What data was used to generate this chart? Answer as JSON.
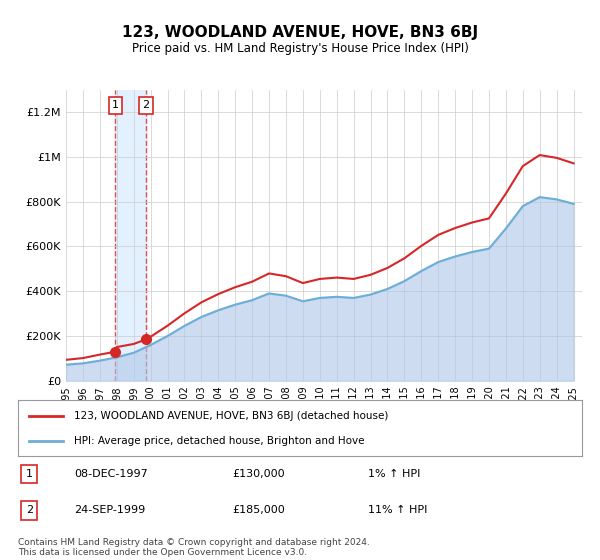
{
  "title": "123, WOODLAND AVENUE, HOVE, BN3 6BJ",
  "subtitle": "Price paid vs. HM Land Registry's House Price Index (HPI)",
  "yticks": [
    0,
    200000,
    400000,
    600000,
    800000,
    1000000,
    1200000
  ],
  "ytick_labels": [
    "£0",
    "£200K",
    "£400K",
    "£600K",
    "£800K",
    "£1M",
    "£1.2M"
  ],
  "ylim": [
    0,
    1300000
  ],
  "xlim_start": 1995.5,
  "xlim_end": 2025.5,
  "hpi_color": "#aec6e8",
  "hpi_line_color": "#6baed6",
  "price_color": "#d62728",
  "shade_color": "#ddeeff",
  "dashed_color": "#e05050",
  "purchase1_x": 1997.92,
  "purchase1_y": 130000,
  "purchase2_x": 1999.73,
  "purchase2_y": 185000,
  "legend_line1": "123, WOODLAND AVENUE, HOVE, BN3 6BJ (detached house)",
  "legend_line2": "HPI: Average price, detached house, Brighton and Hove",
  "table_row1_num": "1",
  "table_row1_date": "08-DEC-1997",
  "table_row1_price": "£130,000",
  "table_row1_hpi": "1% ↑ HPI",
  "table_row2_num": "2",
  "table_row2_date": "24-SEP-1999",
  "table_row2_price": "£185,000",
  "table_row2_hpi": "11% ↑ HPI",
  "footer": "Contains HM Land Registry data © Crown copyright and database right 2024.\nThis data is licensed under the Open Government Licence v3.0.",
  "bg_color": "#ffffff",
  "grid_color": "#cccccc",
  "xticks": [
    1995,
    1996,
    1997,
    1998,
    1999,
    2000,
    2001,
    2002,
    2003,
    2004,
    2005,
    2006,
    2007,
    2008,
    2009,
    2010,
    2011,
    2012,
    2013,
    2014,
    2015,
    2016,
    2017,
    2018,
    2019,
    2020,
    2021,
    2022,
    2023,
    2024,
    2025
  ]
}
